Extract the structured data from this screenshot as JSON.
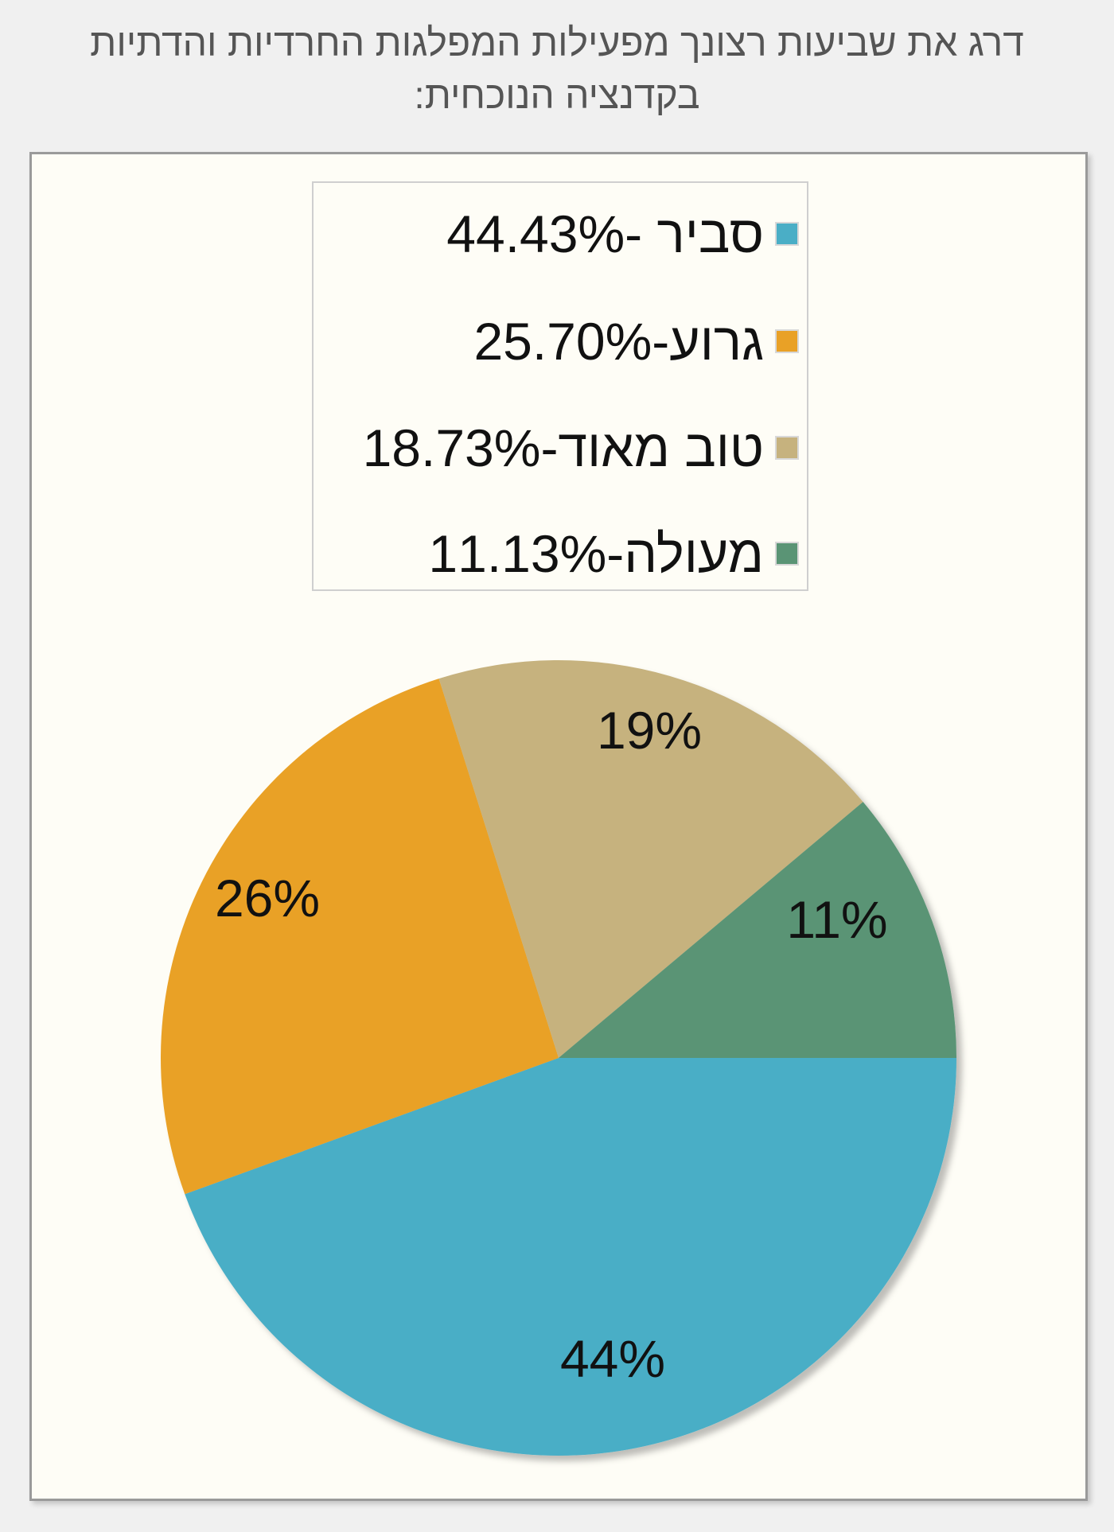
{
  "chart_data": {
    "type": "pie",
    "title": "דרג את שביעות רצונך מפעילות המפלגות החרדיות והדתיות בקדנציה הנוכחית:",
    "slices": [
      {
        "legend": "סביר -44.43%",
        "value": 44.43,
        "label": "44%",
        "color": "#4aaec6"
      },
      {
        "legend": "גרוע-25.70%",
        "value": 25.7,
        "label": "26%",
        "color": "#e9a126"
      },
      {
        "legend": "טוב מאוד-18.73%",
        "value": 18.73,
        "label": "19%",
        "color": "#c6b27e"
      },
      {
        "legend": "מעולה-11.13%",
        "value": 11.13,
        "label": "11%",
        "color": "#5a9475"
      }
    ],
    "legend_position": "top",
    "start_angle": "3 o'clock",
    "direction": "clockwise"
  }
}
